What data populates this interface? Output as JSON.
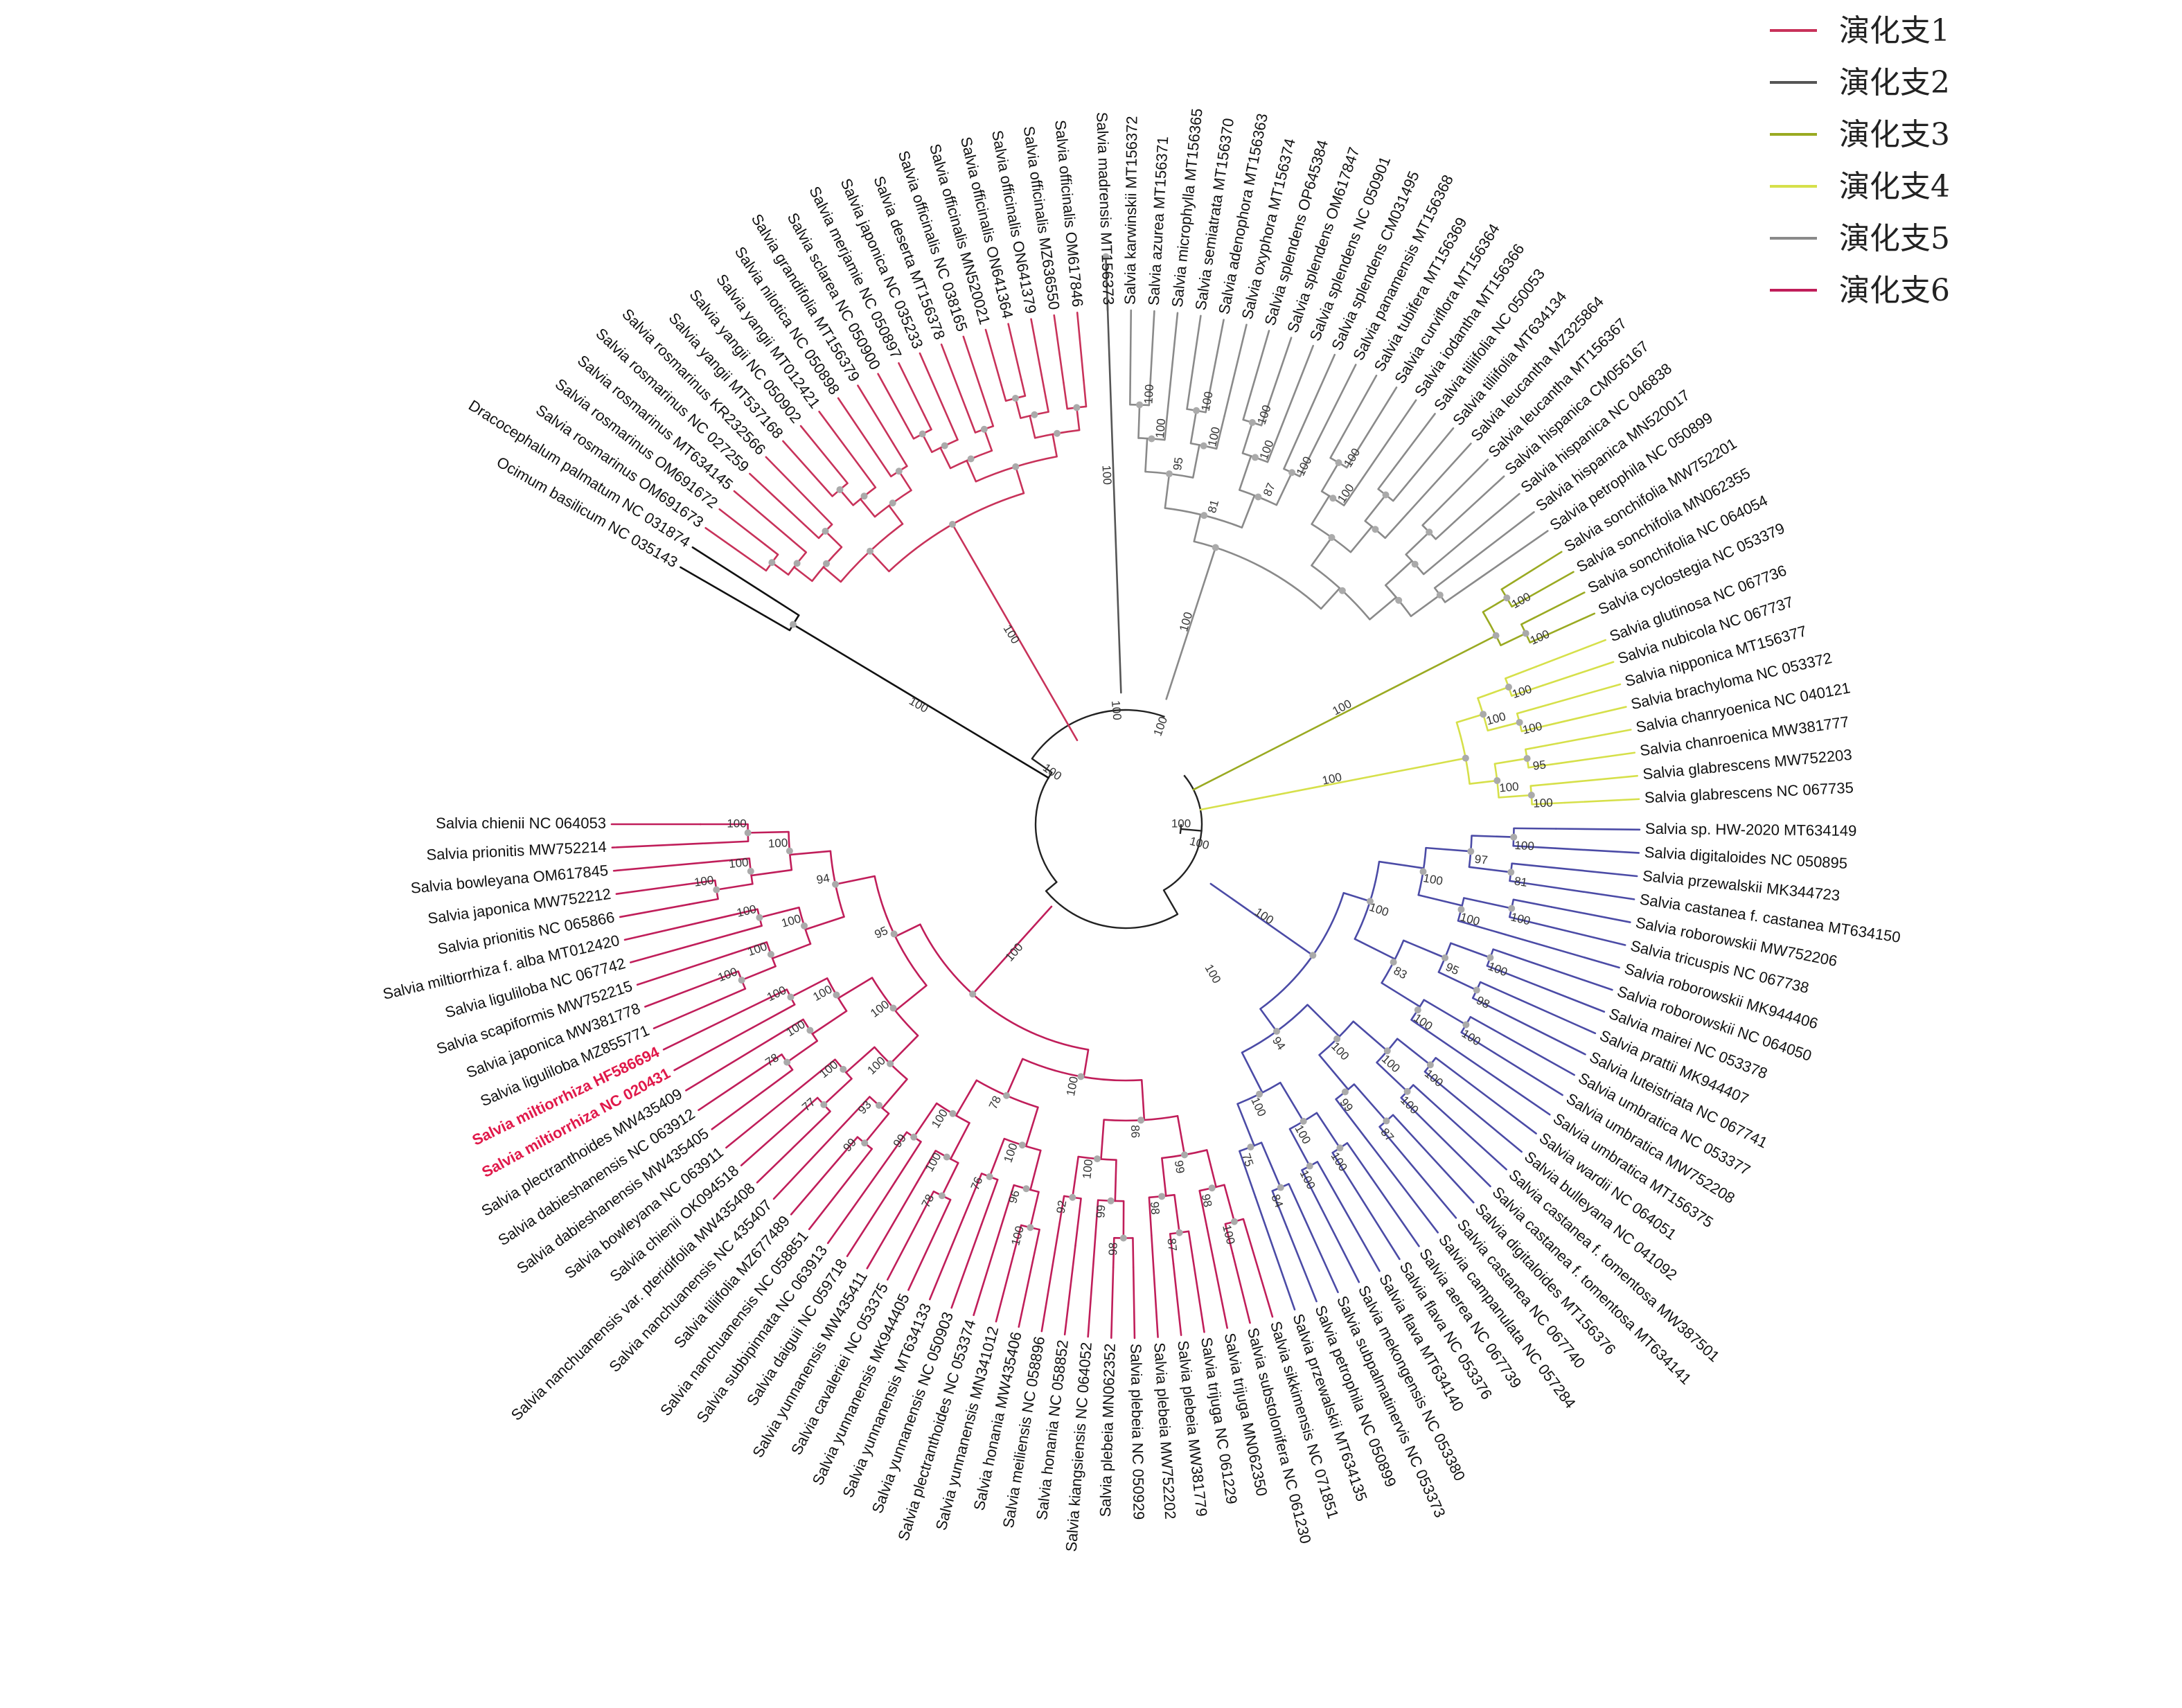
{
  "legend": [
    {
      "label": "演化支1",
      "color": "#c8325a"
    },
    {
      "label": "演化支2",
      "color": "#555555"
    },
    {
      "label": "演化支3",
      "color": "#9aaa22"
    },
    {
      "label": "演化支4",
      "color": "#d6e04a"
    },
    {
      "label": "演化支5",
      "color": "#8a8a8a"
    },
    {
      "label": "演化支6",
      "color": "#c01e5a"
    }
  ],
  "colors": {
    "clade1": "#c8325a",
    "clade2": "#555555",
    "clade3": "#9aaa22",
    "clade4": "#d6e04a",
    "clade5": "#8a8a8a",
    "clade5_blue": "#3a8fd0",
    "clade6": "#c01e5a",
    "purple": "#4b4ba6",
    "outgroup": "#111111",
    "node": "#aaaaaa",
    "highlight": "#e0194a"
  },
  "tips": [
    {
      "name": "Ocimum basilicum NC 035143",
      "angle": 210,
      "clade": "outgroup"
    },
    {
      "name": "Dracocephalum palmatum NC 031874",
      "angle": 212.6,
      "clade": "outgroup"
    },
    {
      "name": "Salvia rosmarinus OM691673",
      "angle": 215.2,
      "clade": "clade1"
    },
    {
      "name": "Salvia rosmarinus OM691672",
      "angle": 217.8,
      "clade": "clade1"
    },
    {
      "name": "Salvia rosmarinus MT634145",
      "angle": 220.4,
      "clade": "clade1"
    },
    {
      "name": "Salvia rosmarinus NC 027259",
      "angle": 223,
      "clade": "clade1"
    },
    {
      "name": "Salvia rosmarinus KR232566",
      "angle": 225.6,
      "clade": "clade1"
    },
    {
      "name": "Salvia yangii MT537168",
      "angle": 228.2,
      "clade": "clade1"
    },
    {
      "name": "Salvia yangii NC 050902",
      "angle": 230.8,
      "clade": "clade1"
    },
    {
      "name": "Salvia yangii MT012421",
      "angle": 233.4,
      "clade": "clade1"
    },
    {
      "name": "Salvia nilotica NC 050898",
      "angle": 236,
      "clade": "clade1"
    },
    {
      "name": "Salvia grandifolia MT156379",
      "angle": 238.6,
      "clade": "clade1"
    },
    {
      "name": "Salvia sclarea NC 050900",
      "angle": 241.2,
      "clade": "clade1"
    },
    {
      "name": "Salvia merjamie NC 050897",
      "angle": 243.8,
      "clade": "clade1"
    },
    {
      "name": "Salvia japonica NC 035233",
      "angle": 246.4,
      "clade": "clade1"
    },
    {
      "name": "Salvia deserta MT156378",
      "angle": 249,
      "clade": "clade1"
    },
    {
      "name": "Salvia officinalis NC 038165",
      "angle": 251.6,
      "clade": "clade1"
    },
    {
      "name": "Salvia officinalis MN520021",
      "angle": 254.2,
      "clade": "clade1"
    },
    {
      "name": "Salvia officinalis ON641364",
      "angle": 256.8,
      "clade": "clade1"
    },
    {
      "name": "Salvia officinalis ON641379",
      "angle": 259.4,
      "clade": "clade1"
    },
    {
      "name": "Salvia officinalis MZ636550",
      "angle": 262,
      "clade": "clade1"
    },
    {
      "name": "Salvia officinalis OM617846",
      "angle": 264.6,
      "clade": "clade1"
    },
    {
      "name": "Salvia madrensis MT156373",
      "angle": 268,
      "clade": "clade2"
    },
    {
      "name": "Salvia karwinskii MT156372",
      "angle": 270.6,
      "clade": "clade5"
    },
    {
      "name": "Salvia azurea MT156371",
      "angle": 273.2,
      "clade": "clade5"
    },
    {
      "name": "Salvia microphylla MT156365",
      "angle": 275.8,
      "clade": "clade5"
    },
    {
      "name": "Salvia semiatrata MT156370",
      "angle": 278.4,
      "clade": "clade5"
    },
    {
      "name": "Salvia adenophora MT156363",
      "angle": 281,
      "clade": "clade5"
    },
    {
      "name": "Salvia oxyphora MT156374",
      "angle": 283.6,
      "clade": "clade5"
    },
    {
      "name": "Salvia splendens OP645384",
      "angle": 286.2,
      "clade": "clade5"
    },
    {
      "name": "Salvia splendens OM617847",
      "angle": 288.8,
      "clade": "clade5"
    },
    {
      "name": "Salvia splendens NC 050901",
      "angle": 291.4,
      "clade": "clade5"
    },
    {
      "name": "Salvia splendens CM031495",
      "angle": 294,
      "clade": "clade5"
    },
    {
      "name": "Salvia panamensis MT156368",
      "angle": 296.6,
      "clade": "clade5"
    },
    {
      "name": "Salvia tubifera MT156369",
      "angle": 299.2,
      "clade": "clade5"
    },
    {
      "name": "Salvia curviflora MT156364",
      "angle": 301.8,
      "clade": "clade5"
    },
    {
      "name": "Salvia iodantha MT156366",
      "angle": 304.4,
      "clade": "clade5"
    },
    {
      "name": "Salvia tiliifolia NC 050053",
      "angle": 307,
      "clade": "clade5"
    },
    {
      "name": "Salvia tiliifolia MT634134",
      "angle": 309.6,
      "clade": "clade5"
    },
    {
      "name": "Salvia leucantha MZ325864",
      "angle": 312.2,
      "clade": "clade5"
    },
    {
      "name": "Salvia leucantha MT156367",
      "angle": 314.8,
      "clade": "clade5"
    },
    {
      "name": "Salvia hispanica CM056167",
      "angle": 317.4,
      "clade": "clade5"
    },
    {
      "name": "Salvia hispanica NC 046838",
      "angle": 320,
      "clade": "clade5"
    },
    {
      "name": "Salvia hispanica MN520017",
      "angle": 322.6,
      "clade": "clade5"
    },
    {
      "name": "Salvia petrophila NC 050899",
      "angle": 325.2,
      "clade": "clade5"
    },
    {
      "name": "Salvia sonchifolia MW752201",
      "angle": 328,
      "clade": "clade3"
    },
    {
      "name": "Salvia sonchifolia MN062355",
      "angle": 330.6,
      "clade": "clade3"
    },
    {
      "name": "Salvia sonchifolia NC 064054",
      "angle": 333.2,
      "clade": "clade3"
    },
    {
      "name": "Salvia cyclostegia NC 053379",
      "angle": 335.8,
      "clade": "clade3"
    },
    {
      "name": "Salvia glutinosa NC 067736",
      "angle": 339,
      "clade": "clade4"
    },
    {
      "name": "Salvia nubicola NC 067737",
      "angle": 341.6,
      "clade": "clade4"
    },
    {
      "name": "Salvia nipponica MT156377",
      "angle": 344.2,
      "clade": "clade4"
    },
    {
      "name": "Salvia brachyloma NC 053372",
      "angle": 346.8,
      "clade": "clade4"
    },
    {
      "name": "Salvia chanryoenica NC 040121",
      "angle": 349.4,
      "clade": "clade4"
    },
    {
      "name": "Salvia chanroenica MW381777",
      "angle": 352,
      "clade": "clade4"
    },
    {
      "name": "Salvia glabrescens MW752203",
      "angle": 354.6,
      "clade": "clade4"
    },
    {
      "name": "Salvia glabrescens NC 067735",
      "angle": 357.2,
      "clade": "clade4"
    },
    {
      "name": "Salvia sp. HW-2020 MT634149",
      "angle": 360.6,
      "clade": "purple"
    },
    {
      "name": "Salvia digitaloides NC 050895",
      "angle": 363.2,
      "clade": "purple"
    },
    {
      "name": "Salvia przewalskii MK344723",
      "angle": 365.8,
      "clade": "purple"
    },
    {
      "name": "Salvia castanea f. castanea MT634150",
      "angle": 368.4,
      "clade": "purple"
    },
    {
      "name": "Salvia roborowskii MW752206",
      "angle": 371,
      "clade": "purple"
    },
    {
      "name": "Salvia tricuspis NC 067738",
      "angle": 373.6,
      "clade": "purple"
    },
    {
      "name": "Salvia roborowskii MK944406",
      "angle": 376.2,
      "clade": "purple"
    },
    {
      "name": "Salvia roborowskii NC 064050",
      "angle": 378.8,
      "clade": "purple"
    },
    {
      "name": "Salvia mairei NC 053378",
      "angle": 381.4,
      "clade": "purple"
    },
    {
      "name": "Salvia prattii MK944407",
      "angle": 384,
      "clade": "purple"
    },
    {
      "name": "Salvia luteistriata NC 067741",
      "angle": 386.6,
      "clade": "purple"
    },
    {
      "name": "Salvia umbratica NC 053377",
      "angle": 389.2,
      "clade": "purple"
    },
    {
      "name": "Salvia umbratica MW752208",
      "angle": 391.8,
      "clade": "purple"
    },
    {
      "name": "Salvia umbratica MT156375",
      "angle": 394.4,
      "clade": "purple"
    },
    {
      "name": "Salvia wardii NC 064051",
      "angle": 397,
      "clade": "purple"
    },
    {
      "name": "Salvia bulleyana NC 041092",
      "angle": 399.6,
      "clade": "purple"
    },
    {
      "name": "Salvia castanea f. tomentosa MW387501",
      "angle": 402.2,
      "clade": "purple"
    },
    {
      "name": "Salvia castanea f. tomentosa MT634141",
      "angle": 404.8,
      "clade": "purple"
    },
    {
      "name": "Salvia digitaloides MT156376",
      "angle": 407.4,
      "clade": "purple"
    },
    {
      "name": "Salvia castanea NC 067740",
      "angle": 410,
      "clade": "purple"
    },
    {
      "name": "Salvia campanulata NC 057284",
      "angle": 412.6,
      "clade": "purple"
    },
    {
      "name": "Salvia aerea NC 067739",
      "angle": 415.2,
      "clade": "purple"
    },
    {
      "name": "Salvia flava NC 053376",
      "angle": 417.8,
      "clade": "purple"
    },
    {
      "name": "Salvia flava MT634140",
      "angle": 420.4,
      "clade": "purple"
    },
    {
      "name": "Salvia mekongensis NC 053380",
      "angle": 423,
      "clade": "purple"
    },
    {
      "name": "Salvia subpalmatinervis NC 053373",
      "angle": 425.6,
      "clade": "purple"
    },
    {
      "name": "Salvia petrophila NC 050899",
      "angle": 428.2,
      "clade": "purple"
    },
    {
      "name": "Salvia przewalskii MT634135",
      "angle": 430.8,
      "clade": "purple"
    },
    {
      "name": "Salvia sikkimensis NC 071851",
      "angle": 433.4,
      "clade": "clade6"
    },
    {
      "name": "Salvia substolonifera NC 061230",
      "angle": 436,
      "clade": "clade6"
    },
    {
      "name": "Salvia trijuga MN062350",
      "angle": 438.6,
      "clade": "clade6"
    },
    {
      "name": "Salvia trijuga NC 061229",
      "angle": 441.2,
      "clade": "clade6"
    },
    {
      "name": "Salvia plebeia MW381779",
      "angle": 443.8,
      "clade": "clade6"
    },
    {
      "name": "Salvia plebeia MW752202",
      "angle": 446.4,
      "clade": "clade6"
    },
    {
      "name": "Salvia plebeia NC 050929",
      "angle": 449,
      "clade": "clade6"
    },
    {
      "name": "Salvia plebeia MN062352",
      "angle": 451.6,
      "clade": "clade6"
    },
    {
      "name": "Salvia kiangsiensis NC 064052",
      "angle": 454.2,
      "clade": "clade6"
    },
    {
      "name": "Salvia honania NC 058852",
      "angle": 456.8,
      "clade": "clade6"
    },
    {
      "name": "Salvia meiliensis NC 058896",
      "angle": 459.4,
      "clade": "clade6"
    },
    {
      "name": "Salvia honania MW435406",
      "angle": 462,
      "clade": "clade6"
    },
    {
      "name": "Salvia yunnanensis MN341012",
      "angle": 464.6,
      "clade": "clade6"
    },
    {
      "name": "Salvia plectranthoides NC 053374",
      "angle": 467.2,
      "clade": "clade6"
    },
    {
      "name": "Salvia yunnanensis NC 050903",
      "angle": 469.8,
      "clade": "clade6"
    },
    {
      "name": "Salvia yunnanensis MT634133",
      "angle": 472.4,
      "clade": "clade6"
    },
    {
      "name": "Salvia yunnanensis MK944405",
      "angle": 475,
      "clade": "clade6"
    },
    {
      "name": "Salvia cavaleriei NC 053375",
      "angle": 477.6,
      "clade": "clade6"
    },
    {
      "name": "Salvia yunnanensis MW435411",
      "angle": 480.2,
      "clade": "clade6"
    },
    {
      "name": "Salvia daiguii NC 059718",
      "angle": 482.8,
      "clade": "clade6"
    },
    {
      "name": "Salvia subbipinnata NC 063913",
      "angle": 485.4,
      "clade": "clade6"
    },
    {
      "name": "Salvia nanchuanensis NC 058851",
      "angle": 488,
      "clade": "clade6"
    },
    {
      "name": "Salvia tiliifolia MZ677489",
      "angle": 490.6,
      "clade": "clade6"
    },
    {
      "name": "Salvia nanchuanensis NC 435407",
      "angle": 493.2,
      "clade": "clade6"
    },
    {
      "name": "Salvia nanchuanensis var. pteridifolia MW435408",
      "angle": 495.8,
      "clade": "clade6"
    },
    {
      "name": "Salvia chienii OK094518",
      "angle": 498.4,
      "clade": "clade6"
    },
    {
      "name": "Salvia bowleyana NC 063911",
      "angle": 501,
      "clade": "clade6"
    },
    {
      "name": "Salvia dabieshanensis MW435405",
      "angle": 503.6,
      "clade": "clade6"
    },
    {
      "name": "Salvia dabieshanensis NC 063912",
      "angle": 506.2,
      "clade": "clade6"
    },
    {
      "name": "Salvia plectranthoides MW435409",
      "angle": 508.8,
      "clade": "clade6"
    },
    {
      "name": "Salvia miltiorrhiza NC 020431",
      "angle": 511.4,
      "clade": "clade6",
      "highlight": true
    },
    {
      "name": "Salvia miltiorrhiza HF586694",
      "angle": 514,
      "clade": "clade6",
      "highlight": true
    },
    {
      "name": "Salvia liguliloba MZ855771",
      "angle": 516.6,
      "clade": "clade6"
    },
    {
      "name": "Salvia japonica MW381778",
      "angle": 519.2,
      "clade": "clade6"
    },
    {
      "name": "Salvia scapiformis MW752215",
      "angle": 521.8,
      "clade": "clade6"
    },
    {
      "name": "Salvia liguliloba NC 067742",
      "angle": 524.4,
      "clade": "clade6"
    },
    {
      "name": "Salvia miltiorrhiza f. alba MT012420",
      "angle": 527,
      "clade": "clade6"
    },
    {
      "name": "Salvia prionitis NC 065866",
      "angle": 529.6,
      "clade": "clade6"
    },
    {
      "name": "Salvia japonica MW752212",
      "angle": 532.2,
      "clade": "clade6"
    },
    {
      "name": "Salvia bowleyana OM617845",
      "angle": 534.8,
      "clade": "clade6"
    },
    {
      "name": "Salvia prionitis MW752214",
      "angle": 537.4,
      "clade": "clade6"
    },
    {
      "name": "Salvia chienii NC 064053",
      "angle": 540,
      "clade": "clade6"
    }
  ],
  "major_clades": [
    {
      "clade": "clade6",
      "a1": 433.4,
      "a2": 540,
      "root_angle": 492,
      "r0": 160,
      "r1": 330,
      "support": "100"
    },
    {
      "clade": "purple",
      "a1": 360.6,
      "a2": 430.8,
      "root_angle": 395,
      "r0": 150,
      "r1": 330,
      "support": "100"
    },
    {
      "clade": "clade4",
      "a1": 339,
      "a2": 357.2,
      "root_angle": 349,
      "r0": 110,
      "r1": 500,
      "support": "100"
    },
    {
      "clade": "clade3",
      "a1": 328,
      "a2": 335.8,
      "root_angle": 333,
      "r0": 110,
      "r1": 600,
      "support": "100"
    },
    {
      "clade": "clade5",
      "a1": 270.6,
      "a2": 325.2,
      "root_angle": 288,
      "r0": 190,
      "r1": 420,
      "support": "100"
    },
    {
      "clade": "clade2",
      "a1": 268,
      "a2": 268,
      "root_angle": 268,
      "r0": 190,
      "r1": 820,
      "support": "100"
    },
    {
      "clade": "clade1",
      "a1": 215.2,
      "a2": 264.6,
      "root_angle": 240,
      "r0": 140,
      "r1": 500,
      "support": "100"
    },
    {
      "clade": "outgroup",
      "a1": 210,
      "a2": 212.6,
      "root_angle": 211,
      "r0": 130,
      "r1": 560,
      "support": "100"
    }
  ],
  "inner_supports": [
    {
      "angle": 265,
      "r": 165,
      "label": "100"
    },
    {
      "angle": 290,
      "r": 150,
      "label": "100"
    },
    {
      "angle": 215,
      "r": 130,
      "label": "100"
    },
    {
      "angle": 0,
      "r": 80,
      "label": "100"
    },
    {
      "angle": 15,
      "r": 110,
      "label": "100"
    },
    {
      "angle": 60,
      "r": 250,
      "label": "100"
    }
  ],
  "subtree_supports": [
    "100",
    "98",
    "87",
    "98",
    "99",
    "98",
    "99",
    "92",
    "100",
    "86",
    "100",
    "96",
    "76",
    "100",
    "78",
    "100",
    "99",
    "100",
    "78",
    "100",
    "99",
    "93",
    "77",
    "100",
    "100",
    "78",
    "100",
    "100",
    "100",
    "100",
    "100",
    "100",
    "100",
    "100",
    "100",
    "100",
    "100",
    "100",
    "94",
    "95",
    "100",
    "81",
    "97",
    "100",
    "100",
    "100",
    "100",
    "98",
    "95",
    "100",
    "100",
    "83",
    "100",
    "100",
    "100",
    "100",
    "87",
    "99",
    "100",
    "100",
    "100",
    "100",
    "84",
    "75",
    "100",
    "94",
    "100",
    "100",
    "100",
    "95",
    "100",
    "100",
    "100",
    "100",
    "100",
    "100",
    "100",
    "100",
    "95",
    "100",
    "100",
    "100",
    "87",
    "81",
    "100",
    "100"
  ]
}
